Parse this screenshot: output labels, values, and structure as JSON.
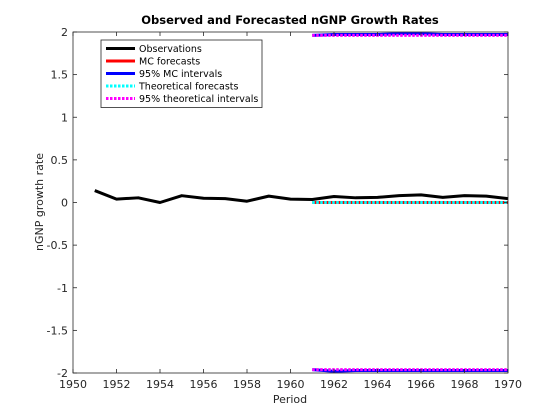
{
  "chart_data": {
    "type": "line",
    "title": "Observed and Forecasted nGNP Growth Rates",
    "xlabel": "Period",
    "ylabel": "nGNP growth rate",
    "xlim": [
      1950,
      1970
    ],
    "ylim": [
      -2,
      2
    ],
    "xticks": [
      "1950",
      "1952",
      "1954",
      "1956",
      "1958",
      "1960",
      "1962",
      "1964",
      "1966",
      "1968",
      "1970"
    ],
    "yticks": [
      "-2",
      "-1.5",
      "-1",
      "-0.5",
      "0",
      "0.5",
      "1",
      "1.5",
      "2"
    ],
    "grid": false,
    "legend_position": "top-left",
    "series": [
      {
        "name": "Observations",
        "color": "#000000",
        "style": "solid",
        "x": [
          1951,
          1952,
          1953,
          1954,
          1955,
          1956,
          1957,
          1958,
          1959,
          1960,
          1961,
          1962,
          1963,
          1964,
          1965,
          1966,
          1967,
          1968,
          1969,
          1970
        ],
        "y": [
          0.14,
          0.04,
          0.055,
          0.0,
          0.08,
          0.05,
          0.045,
          0.015,
          0.075,
          0.04,
          0.035,
          0.07,
          0.055,
          0.06,
          0.08,
          0.09,
          0.06,
          0.08,
          0.075,
          0.045
        ]
      },
      {
        "name": "MC forecasts",
        "color": "#ff0000",
        "style": "solid",
        "x": [
          1961,
          1962,
          1963,
          1964,
          1965,
          1966,
          1967,
          1968,
          1969,
          1970
        ],
        "y": [
          0.0,
          0.0,
          0.0,
          0.0,
          0.0,
          0.0,
          0.0,
          0.0,
          0.0,
          0.0
        ]
      },
      {
        "name": "95% MC intervals",
        "color": "#0000ff",
        "style": "solid",
        "x": [
          1961,
          1962,
          1963,
          1964,
          1965,
          1966,
          1967,
          1968,
          1969,
          1970
        ],
        "upper": [
          1.96,
          1.97,
          1.97,
          1.97,
          1.98,
          1.98,
          1.97,
          1.97,
          1.97,
          1.97
        ],
        "lower": [
          -1.96,
          -1.98,
          -1.97,
          -1.97,
          -1.97,
          -1.97,
          -1.97,
          -1.97,
          -1.97,
          -1.97
        ]
      },
      {
        "name": "Theoretical forecasts",
        "color": "#00ffff",
        "style": "dotted",
        "x": [
          1961,
          1962,
          1963,
          1964,
          1965,
          1966,
          1967,
          1968,
          1969,
          1970
        ],
        "y": [
          0.0,
          0.0,
          0.0,
          0.0,
          0.0,
          0.0,
          0.0,
          0.0,
          0.0,
          0.0
        ]
      },
      {
        "name": "95% theoretical intervals",
        "color": "#ff00ff",
        "style": "dotted",
        "x": [
          1961,
          1962,
          1963,
          1964,
          1965,
          1966,
          1967,
          1968,
          1969,
          1970
        ],
        "upper": [
          1.96,
          1.96,
          1.96,
          1.96,
          1.96,
          1.96,
          1.96,
          1.96,
          1.96,
          1.96
        ],
        "lower": [
          -1.96,
          -1.96,
          -1.96,
          -1.96,
          -1.96,
          -1.96,
          -1.96,
          -1.96,
          -1.96,
          -1.96
        ]
      }
    ]
  }
}
